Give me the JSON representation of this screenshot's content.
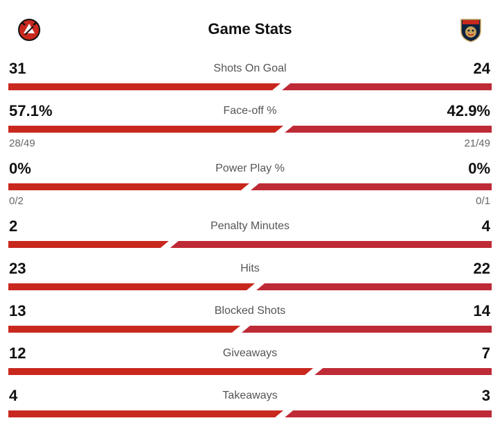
{
  "header": {
    "title": "Game Stats",
    "home_logo_icon": "new-jersey-devils-logo-icon",
    "away_logo_icon": "florida-panthers-logo-icon"
  },
  "colors": {
    "home": "#C8281E",
    "away": "#BE2A36",
    "label": "#555555"
  },
  "stats": [
    {
      "label": "Shots On Goal",
      "home": "31",
      "away": "24",
      "home_share": 0.564
    },
    {
      "label": "Face-off %",
      "home": "57.1%",
      "away": "42.9%",
      "home_share": 0.571,
      "home_sub": "28/49",
      "away_sub": "21/49"
    },
    {
      "label": "Power Play %",
      "home": "0%",
      "away": "0%",
      "home_share": 0.5,
      "home_sub": "0/2",
      "away_sub": "0/1"
    },
    {
      "label": "Penalty Minutes",
      "home": "2",
      "away": "4",
      "home_share": 0.333
    },
    {
      "label": "Hits",
      "home": "23",
      "away": "22",
      "home_share": 0.511
    },
    {
      "label": "Blocked Shots",
      "home": "13",
      "away": "14",
      "home_share": 0.481
    },
    {
      "label": "Giveaways",
      "home": "12",
      "away": "7",
      "home_share": 0.632
    },
    {
      "label": "Takeaways",
      "home": "4",
      "away": "3",
      "home_share": 0.571
    }
  ]
}
